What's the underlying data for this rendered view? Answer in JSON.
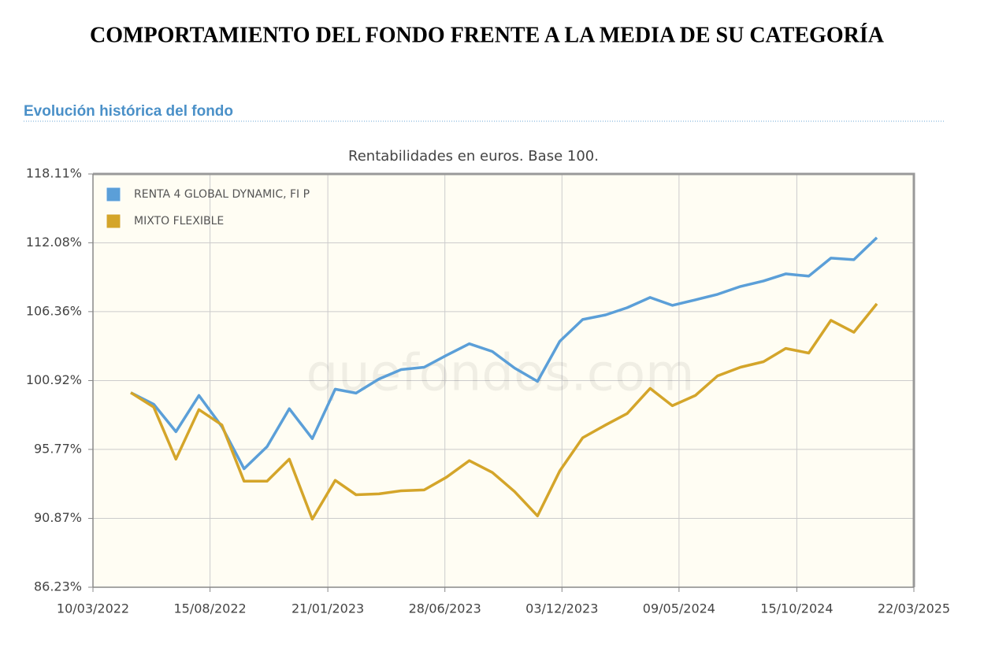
{
  "header": {
    "title": "COMPORTAMIENTO DEL FONDO FRENTE A LA MEDIA DE SU CATEGORÍA"
  },
  "section": {
    "title": "Evolución histórica del fondo"
  },
  "chart_data": {
    "type": "line",
    "title": "Rentabilidades en euros. Base 100.",
    "watermark": "quefondos.com",
    "log_scale": true,
    "grid": true,
    "legend": "top-left",
    "x": [
      "2022-04-30",
      "2022-05-31",
      "2022-06-30",
      "2022-07-31",
      "2022-08-31",
      "2022-09-30",
      "2022-10-31",
      "2022-11-30",
      "2022-12-31",
      "2023-01-31",
      "2023-02-28",
      "2023-03-31",
      "2023-04-30",
      "2023-05-31",
      "2023-06-30",
      "2023-07-31",
      "2023-08-31",
      "2023-09-30",
      "2023-10-31",
      "2023-11-30",
      "2023-12-31",
      "2024-01-31",
      "2024-02-29",
      "2024-03-31",
      "2024-04-30",
      "2024-05-31",
      "2024-06-30",
      "2024-07-31",
      "2024-08-31",
      "2024-09-30",
      "2024-10-31",
      "2024-11-30",
      "2024-12-31",
      "2025-01-31"
    ],
    "series": [
      {
        "name": "RENTA 4 GLOBAL DYNAMIC, FI P",
        "color": "#5b9fd8",
        "values": [
          100,
          99.12,
          97.07,
          99.78,
          97.45,
          94.37,
          95.97,
          98.78,
          96.56,
          100.26,
          99.96,
          101.04,
          101.77,
          101.95,
          102.88,
          103.79,
          103.18,
          101.89,
          100.86,
          103.98,
          105.72,
          106.1,
          106.68,
          107.51,
          106.87,
          107.32,
          107.77,
          108.42,
          108.87,
          109.46,
          109.27,
          110.78,
          110.65,
          112.52
        ]
      },
      {
        "name": "MIXTO FLEXIBLE",
        "color": "#d4a52a",
        "values": [
          100,
          98.9,
          95.06,
          98.72,
          97.57,
          93.48,
          93.48,
          95.06,
          90.82,
          93.54,
          92.52,
          92.58,
          92.8,
          92.86,
          93.76,
          94.95,
          94.1,
          92.75,
          91.04,
          94.21,
          96.62,
          97.57,
          98.42,
          100.32,
          99.01,
          99.78,
          101.28,
          101.95,
          102.38,
          103.42,
          103.06,
          105.66,
          104.7,
          107.0
        ]
      }
    ],
    "xlim": [
      "2022-03-10",
      "2025-03-22"
    ],
    "xticks": [
      {
        "value": "2022-03-10",
        "label": "10/03/2022"
      },
      {
        "value": "2022-08-15",
        "label": "15/08/2022"
      },
      {
        "value": "2023-01-21",
        "label": "21/01/2023"
      },
      {
        "value": "2023-06-28",
        "label": "28/06/2023"
      },
      {
        "value": "2023-12-03",
        "label": "03/12/2023"
      },
      {
        "value": "2024-05-09",
        "label": "09/05/2024"
      },
      {
        "value": "2024-10-15",
        "label": "15/10/2024"
      },
      {
        "value": "2025-03-22",
        "label": "22/03/2025"
      }
    ],
    "ylim": [
      86.23,
      118.11
    ],
    "yticks": [
      {
        "value": 86.23,
        "label": "86.23%"
      },
      {
        "value": 90.87,
        "label": "90.87%"
      },
      {
        "value": 95.77,
        "label": "95.77%"
      },
      {
        "value": 100.92,
        "label": "100.92%"
      },
      {
        "value": 106.36,
        "label": "106.36%"
      },
      {
        "value": 112.08,
        "label": "112.08%"
      },
      {
        "value": 118.11,
        "label": "118.11%"
      }
    ]
  }
}
